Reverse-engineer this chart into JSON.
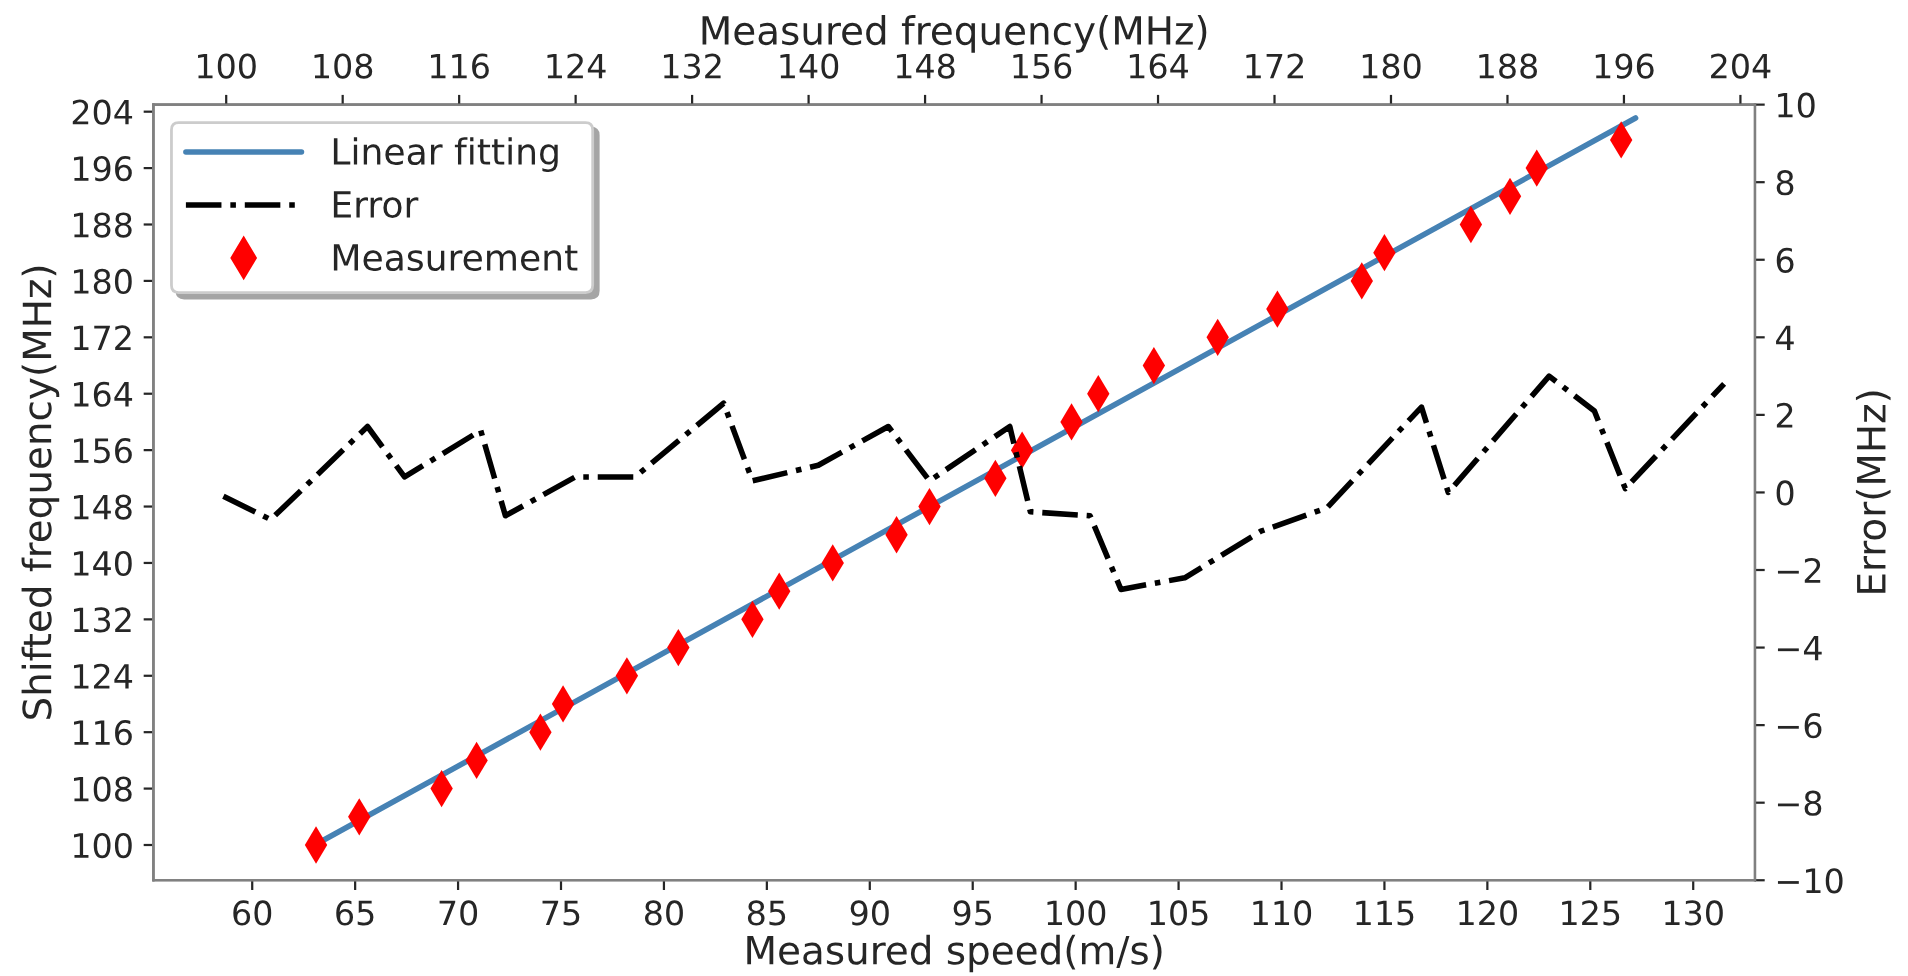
{
  "chart_data": {
    "type": "line",
    "xlabel": "Measured speed(m/s)",
    "ylabel": "Shifted frequency(MHz)",
    "y2label": "Error(MHz)",
    "x2label": "Measured frequency(MHz)",
    "xlim": [
      55.2,
      133.0
    ],
    "xticks": [
      60,
      65,
      70,
      75,
      80,
      85,
      90,
      95,
      100,
      105,
      110,
      115,
      120,
      125,
      130
    ],
    "ylim": [
      95,
      205
    ],
    "yticks": [
      100,
      108,
      116,
      124,
      132,
      140,
      148,
      156,
      164,
      172,
      180,
      188,
      196,
      204
    ],
    "x2lim": [
      95,
      205
    ],
    "x2ticks": [
      100,
      108,
      116,
      124,
      132,
      140,
      148,
      156,
      164,
      172,
      180,
      188,
      196,
      204
    ],
    "y2lim": [
      -10,
      10
    ],
    "y2ticks": [
      {
        "value": -10,
        "label": "−10"
      },
      {
        "value": -8,
        "label": "−8"
      },
      {
        "value": -6,
        "label": "−6"
      },
      {
        "value": -4,
        "label": "−4"
      },
      {
        "value": -2,
        "label": "−2"
      },
      0,
      2,
      4,
      6,
      8,
      10
    ],
    "grid": false,
    "legend": "top left",
    "series": [
      {
        "name": "Linear fitting",
        "color": "#4682b4",
        "line_style": "solid",
        "marker": "none",
        "x": [
          63.1,
          127.2
        ],
        "values": [
          100.1,
          203.1
        ]
      },
      {
        "name": "Error",
        "axis": "y2",
        "color": "#000000",
        "line_style": "dashdot",
        "marker": "none",
        "x": [
          58.6,
          60.9,
          65.6,
          67.4,
          71.1,
          72.3,
          75.7,
          78.6,
          82.9,
          84.3,
          87.5,
          90.9,
          92.9,
          96.8,
          97.8,
          100.7,
          102.2,
          105.3,
          109.0,
          112.2,
          116.8,
          118.1,
          123.0,
          125.2,
          126.7,
          131.5
        ],
        "values": [
          -0.1,
          -0.7,
          1.7,
          0.4,
          1.6,
          -0.6,
          0.4,
          0.4,
          2.3,
          0.3,
          0.7,
          1.7,
          0.3,
          1.7,
          -0.5,
          -0.6,
          -2.5,
          -2.2,
          -1.0,
          -0.4,
          2.2,
          0.0,
          3.0,
          2.1,
          0.1,
          2.8
        ]
      },
      {
        "name": "Measurement",
        "type": "scatter",
        "color": "#ff0000",
        "marker": "diamond",
        "x": [
          63.1,
          65.2,
          69.2,
          70.9,
          74.0,
          75.1,
          78.2,
          80.7,
          84.3,
          85.6,
          88.2,
          91.3,
          92.9,
          96.1,
          97.4,
          99.8,
          101.1,
          103.8,
          106.9,
          109.8,
          113.9,
          115.0,
          119.2,
          121.1,
          122.4,
          126.5
        ],
        "values": [
          100,
          104,
          108,
          112,
          116,
          120,
          124,
          128,
          132,
          136,
          140,
          144,
          148,
          152,
          156,
          160,
          164,
          168,
          172,
          176,
          180,
          184,
          188,
          192,
          196,
          200
        ]
      }
    ]
  }
}
